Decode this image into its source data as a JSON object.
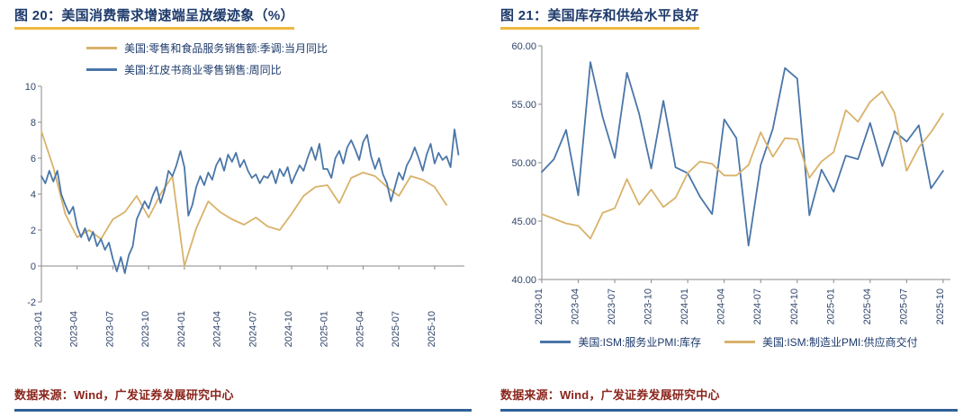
{
  "panels": [
    {
      "title": "图 20：美国消费需求增速端呈放缓迹象（%）",
      "source": "数据来源：Wind，广发证券发展研究中心"
    },
    {
      "title": "图 21：美国库存和供给水平良好",
      "source": "数据来源：Wind，广发证券发展研究中心"
    }
  ],
  "colors": {
    "blue": "#4a76a8",
    "tan": "#d9b26a",
    "title_navy": "#1d3a6b",
    "underline_gold": "#efb73e",
    "source_red": "#8a251c",
    "rule_blue": "#2f6199",
    "tick_text": "#2f4469",
    "axis": "#8a8a8a"
  },
  "chart_data": [
    {
      "type": "line",
      "title": "美国消费需求增速端呈放缓迹象（%）",
      "xlabel": "",
      "ylabel": "",
      "ylim": [
        -2,
        10
      ],
      "y_ticks": [
        -2,
        0,
        2,
        4,
        6,
        8,
        10
      ],
      "x_axis_at": 0,
      "x_domain": [
        0,
        35.5
      ],
      "x_tick_positions": [
        0,
        3,
        6,
        9,
        12,
        15,
        18,
        21,
        24,
        27,
        30,
        33
      ],
      "x_tick_labels": [
        "2023-01",
        "2023-04",
        "2023-07",
        "2023-10",
        "2024-01",
        "2024-04",
        "2024-07",
        "2024-10",
        "2025-01",
        "2025-04",
        "2025-07",
        "2025-10"
      ],
      "legend_position": "top",
      "grid": false,
      "series": [
        {
          "name": "美国:零售和食品服务销售额:季调:当月同比",
          "color_key": "tan",
          "x_start": 0,
          "x_end": 34,
          "values": [
            7.5,
            5.5,
            2.9,
            1.6,
            2.0,
            1.5,
            2.6,
            3.0,
            3.9,
            2.7,
            4.0,
            5.0,
            0.0,
            2.1,
            3.6,
            3.0,
            2.6,
            2.3,
            2.7,
            2.2,
            2.0,
            2.9,
            3.9,
            4.4,
            4.5,
            3.5,
            4.9,
            5.2,
            5.0,
            4.4,
            3.9,
            5.0,
            4.8,
            4.4,
            3.4
          ]
        },
        {
          "name": "美国:红皮书商业零售销售:周同比",
          "color_key": "blue",
          "x_start": 0,
          "x_end": 35,
          "values": [
            5.0,
            4.6,
            5.3,
            4.7,
            5.3,
            4.0,
            3.4,
            2.9,
            3.3,
            2.2,
            1.6,
            2.1,
            1.4,
            1.9,
            1.1,
            1.5,
            0.9,
            1.3,
            0.4,
            -0.3,
            0.5,
            -0.4,
            0.6,
            1.1,
            2.6,
            3.1,
            3.6,
            3.2,
            3.9,
            4.4,
            3.5,
            4.2,
            5.3,
            5.0,
            5.6,
            6.4,
            5.5,
            2.8,
            3.4,
            4.4,
            5.0,
            4.5,
            5.2,
            4.8,
            5.6,
            6.0,
            5.3,
            6.2,
            5.8,
            6.3,
            5.5,
            5.9,
            5.3,
            4.9,
            5.1,
            4.6,
            5.0,
            4.9,
            5.3,
            4.6,
            5.4,
            5.0,
            5.5,
            4.6,
            5.1,
            5.6,
            5.3,
            6.0,
            6.6,
            5.9,
            6.8,
            5.4,
            5.4,
            4.9,
            6.0,
            6.4,
            5.7,
            6.6,
            7.0,
            6.5,
            5.9,
            6.9,
            7.3,
            6.1,
            5.4,
            6.0,
            5.1,
            4.6,
            3.6,
            4.4,
            5.2,
            4.8,
            5.6,
            6.0,
            6.6,
            6.0,
            5.3,
            6.2,
            6.8,
            5.7,
            6.3,
            5.9,
            6.1,
            5.5,
            7.6,
            6.2
          ]
        }
      ]
    },
    {
      "type": "line",
      "title": "美国库存和供给水平良好",
      "xlabel": "",
      "ylabel": "",
      "ylim": [
        40,
        60
      ],
      "y_ticks": [
        40,
        45,
        50,
        55,
        60
      ],
      "y_tick_format": "2dp",
      "x_axis_at": 40,
      "x_domain": [
        0,
        33.6
      ],
      "x_tick_positions": [
        0,
        3,
        6,
        9,
        12,
        15,
        18,
        21,
        24,
        27,
        30,
        33
      ],
      "x_tick_labels": [
        "2023-01",
        "2023-04",
        "2023-07",
        "2023-10",
        "2024-01",
        "2024-04",
        "2024-07",
        "2024-10",
        "2025-01",
        "2025-04",
        "2025-07",
        "2025-10"
      ],
      "legend_position": "bottom",
      "grid": false,
      "series": [
        {
          "name": "美国:ISM:服务业PMI:库存",
          "color_key": "blue",
          "x_start": 0,
          "x_end": 33,
          "values": [
            49.2,
            50.3,
            52.8,
            47.2,
            58.6,
            53.9,
            50.4,
            57.7,
            54.2,
            49.5,
            55.3,
            49.6,
            49.1,
            47.1,
            45.6,
            53.7,
            52.1,
            42.9,
            49.8,
            52.9,
            58.1,
            57.2,
            45.5,
            49.4,
            47.5,
            50.6,
            50.3,
            53.4,
            49.7,
            52.7,
            51.8,
            53.2,
            47.8,
            49.3
          ]
        },
        {
          "name": "美国:ISM:制造业PMI:供应商交付",
          "color_key": "tan",
          "x_start": 0,
          "x_end": 33,
          "values": [
            45.6,
            45.2,
            44.8,
            44.6,
            43.5,
            45.7,
            46.1,
            48.6,
            46.4,
            47.7,
            46.2,
            47.0,
            49.1,
            50.1,
            49.9,
            48.9,
            48.9,
            49.8,
            52.6,
            50.5,
            52.1,
            52.0,
            48.7,
            50.1,
            50.9,
            54.5,
            53.5,
            55.2,
            56.1,
            54.3,
            49.3,
            51.3,
            52.6,
            54.2
          ]
        }
      ]
    }
  ]
}
